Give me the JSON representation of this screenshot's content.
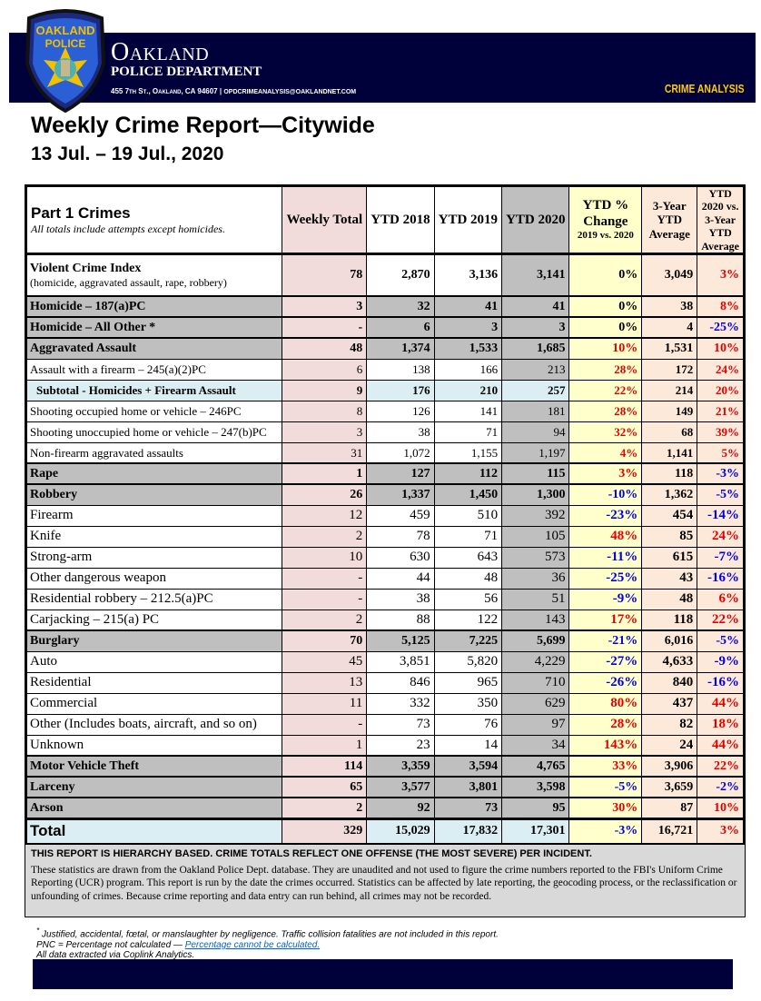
{
  "header": {
    "org_name": "Oakland",
    "org_sub": "POLICE DEPARTMENT",
    "address": "455 7th St., Oakland, CA 94607",
    "email": "opdcrimeanalysis@oaklandnet.com",
    "unit": "CRIME ANALYSIS",
    "badge_text": "OAKLAND POLICE"
  },
  "report": {
    "title": "Weekly Crime Report—Citywide",
    "dates": "13 Jul. – 19 Jul., 2020"
  },
  "table": {
    "headers": {
      "label": "Part 1 Crimes",
      "label_note": "All totals include attempts except homicides.",
      "weekly": "Weekly Total",
      "ytd2018": "YTD 2018",
      "ytd2019": "YTD 2019",
      "ytd2020": "YTD 2020",
      "change": "YTD % Change",
      "change_sub": "2019 vs. 2020",
      "avg3": "3-Year YTD Average",
      "vs3": "YTD 2020 vs. 3-Year YTD Average"
    },
    "rows": [
      {
        "type": "vci",
        "label": "Violent Crime Index",
        "sublabel": "(homicide, aggravated assault, rape, robbery)",
        "weekly": "78",
        "y2018": "2,870",
        "y2019": "3,136",
        "y2020": "3,141",
        "change": "0%",
        "avg3": "3,049",
        "vs3": "3%"
      },
      {
        "type": "major",
        "label": "Homicide – 187(a)PC",
        "weekly": "3",
        "y2018": "32",
        "y2019": "41",
        "y2020": "41",
        "change": "0%",
        "avg3": "38",
        "vs3": "8%"
      },
      {
        "type": "major",
        "label": "Homicide – All Other *",
        "weekly": "-",
        "y2018": "6",
        "y2019": "3",
        "y2020": "3",
        "change": "0%",
        "avg3": "4",
        "vs3": "-25%"
      },
      {
        "type": "major",
        "label": "Aggravated Assault",
        "weekly": "48",
        "y2018": "1,374",
        "y2019": "1,533",
        "y2020": "1,685",
        "change": "10%",
        "avg3": "1,531",
        "vs3": "10%"
      },
      {
        "type": "sub",
        "label": "Assault with a firearm – 245(a)(2)PC",
        "weekly": "6",
        "y2018": "138",
        "y2019": "166",
        "y2020": "213",
        "change": "28%",
        "avg3": "172",
        "vs3": "24%"
      },
      {
        "type": "subtotal",
        "label": "Subtotal - Homicides + Firearm Assault",
        "weekly": "9",
        "y2018": "176",
        "y2019": "210",
        "y2020": "257",
        "change": "22%",
        "avg3": "214",
        "vs3": "20%"
      },
      {
        "type": "sub",
        "label": "Shooting occupied home or vehicle – 246PC",
        "weekly": "8",
        "y2018": "126",
        "y2019": "141",
        "y2020": "181",
        "change": "28%",
        "avg3": "149",
        "vs3": "21%"
      },
      {
        "type": "sub",
        "label": "Shooting unoccupied home or vehicle – 247(b)PC",
        "weekly": "3",
        "y2018": "38",
        "y2019": "71",
        "y2020": "94",
        "change": "32%",
        "avg3": "68",
        "vs3": "39%"
      },
      {
        "type": "sub",
        "label": "Non-firearm aggravated assaults",
        "weekly": "31",
        "y2018": "1,072",
        "y2019": "1,155",
        "y2020": "1,197",
        "change": "4%",
        "avg3": "1,141",
        "vs3": "5%"
      },
      {
        "type": "major",
        "label": "Rape",
        "weekly": "1",
        "y2018": "127",
        "y2019": "112",
        "y2020": "115",
        "change": "3%",
        "avg3": "118",
        "vs3": "-3%"
      },
      {
        "type": "major",
        "label": "Robbery",
        "weekly": "26",
        "y2018": "1,337",
        "y2019": "1,450",
        "y2020": "1,300",
        "change": "-10%",
        "avg3": "1,362",
        "vs3": "-5%"
      },
      {
        "type": "sub big",
        "label": "Firearm",
        "weekly": "12",
        "y2018": "459",
        "y2019": "510",
        "y2020": "392",
        "change": "-23%",
        "avg3": "454",
        "vs3": "-14%"
      },
      {
        "type": "sub big",
        "label": "Knife",
        "weekly": "2",
        "y2018": "78",
        "y2019": "71",
        "y2020": "105",
        "change": "48%",
        "avg3": "85",
        "vs3": "24%"
      },
      {
        "type": "sub big",
        "label": "Strong-arm",
        "weekly": "10",
        "y2018": "630",
        "y2019": "643",
        "y2020": "573",
        "change": "-11%",
        "avg3": "615",
        "vs3": "-7%"
      },
      {
        "type": "sub big",
        "label": "Other dangerous weapon",
        "weekly": "-",
        "y2018": "44",
        "y2019": "48",
        "y2020": "36",
        "change": "-25%",
        "avg3": "43",
        "vs3": "-16%"
      },
      {
        "type": "sub big",
        "label": "Residential  robbery – 212.5(a)PC",
        "weekly": "-",
        "y2018": "38",
        "y2019": "56",
        "y2020": "51",
        "change": "-9%",
        "avg3": "48",
        "vs3": "6%"
      },
      {
        "type": "sub big",
        "label": "Carjacking – 215(a) PC",
        "weekly": "2",
        "y2018": "88",
        "y2019": "122",
        "y2020": "143",
        "change": "17%",
        "avg3": "118",
        "vs3": "22%"
      },
      {
        "type": "major",
        "label": "Burglary",
        "weekly": "70",
        "y2018": "5,125",
        "y2019": "7,225",
        "y2020": "5,699",
        "change": "-21%",
        "avg3": "6,016",
        "vs3": "-5%"
      },
      {
        "type": "sub big",
        "label": "Auto",
        "weekly": "45",
        "y2018": "3,851",
        "y2019": "5,820",
        "y2020": "4,229",
        "change": "-27%",
        "avg3": "4,633",
        "vs3": "-9%"
      },
      {
        "type": "sub big",
        "label": "Residential",
        "weekly": "13",
        "y2018": "846",
        "y2019": "965",
        "y2020": "710",
        "change": "-26%",
        "avg3": "840",
        "vs3": "-16%"
      },
      {
        "type": "sub big",
        "label": "Commercial",
        "weekly": "11",
        "y2018": "332",
        "y2019": "350",
        "y2020": "629",
        "change": "80%",
        "avg3": "437",
        "vs3": "44%"
      },
      {
        "type": "sub big",
        "label": "Other (Includes boats, aircraft, and so on)",
        "weekly": "-",
        "y2018": "73",
        "y2019": "76",
        "y2020": "97",
        "change": "28%",
        "avg3": "82",
        "vs3": "18%"
      },
      {
        "type": "sub big",
        "label": "Unknown",
        "weekly": "1",
        "y2018": "23",
        "y2019": "14",
        "y2020": "34",
        "change": "143%",
        "avg3": "24",
        "vs3": "44%"
      },
      {
        "type": "major",
        "label": "Motor Vehicle Theft",
        "weekly": "114",
        "y2018": "3,359",
        "y2019": "3,594",
        "y2020": "4,765",
        "change": "33%",
        "avg3": "3,906",
        "vs3": "22%"
      },
      {
        "type": "major",
        "label": "Larceny",
        "weekly": "65",
        "y2018": "3,577",
        "y2019": "3,801",
        "y2020": "3,598",
        "change": "-5%",
        "avg3": "3,659",
        "vs3": "-2%"
      },
      {
        "type": "major",
        "label": "Arson",
        "weekly": "2",
        "y2018": "92",
        "y2019": "73",
        "y2020": "95",
        "change": "30%",
        "avg3": "87",
        "vs3": "10%"
      },
      {
        "type": "total",
        "label": "Total",
        "weekly": "329",
        "y2018": "15,029",
        "y2019": "17,832",
        "y2020": "17,301",
        "change": "-3%",
        "avg3": "16,721",
        "vs3": "3%"
      }
    ]
  },
  "notes": {
    "heading": "This report is hierarchy based. Crime totals reflect one offense (the most severe) per incident.",
    "body": "These statistics are drawn from the Oakland Police Dept. database. They are unaudited and not used to figure the crime numbers reported to the FBI's Uniform Crime Reporting (UCR) program. This report is run by the date the crimes occurred. Statistics can be affected by late reporting, the geocoding process, or the reclassification or unfounding of crimes. Because crime reporting and data entry can run behind, all crimes may not be recorded."
  },
  "footnotes": {
    "asterisk": "*",
    "line1": "Justified, accidental, fœtal, or manslaughter by negligence. Traffic collision fatalities are not included in this report.",
    "line2_prefix": "PNC = Percentage not calculated — ",
    "line2_link": "Percentage cannot be calculated.",
    "line3": "All data extracted via Coplink Analytics."
  },
  "colors": {
    "navy": "#00003a",
    "gold": "#ffcc00",
    "increase": "#e00000",
    "decrease": "#0000e0"
  }
}
